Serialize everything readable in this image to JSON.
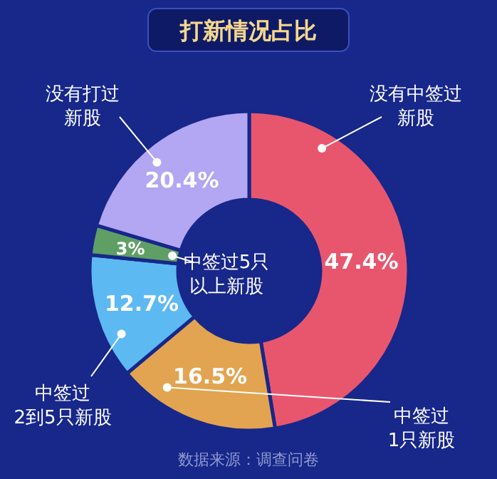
{
  "chart_data": {
    "type": "donut",
    "title": "打新情况占比",
    "categories": [
      "没有中签过新股",
      "中签过1只新股",
      "中签过2到5只新股",
      "中签过5只以上新股",
      "没有打过新股"
    ],
    "values": [
      47.4,
      16.5,
      12.7,
      3,
      20.4
    ],
    "value_labels": [
      "47.4%",
      "16.5%",
      "12.7%",
      "3%",
      "20.4%"
    ],
    "colors": [
      "#e8566e",
      "#e2a451",
      "#5db9f2",
      "#5f9f66",
      "#b3a6f2"
    ],
    "annotations": [
      "数据来源：调查问卷"
    ]
  }
}
